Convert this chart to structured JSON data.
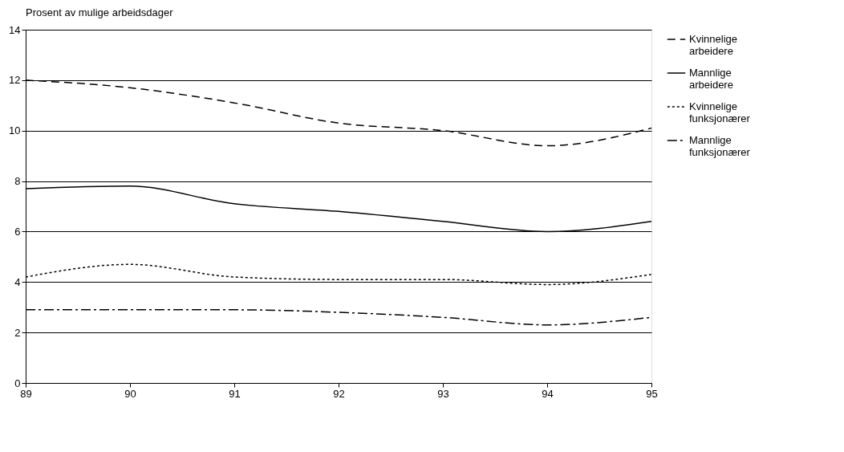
{
  "chart_data": {
    "type": "line",
    "title": "Prosent av mulige arbeidsdager",
    "x": [
      89,
      90,
      91,
      92,
      93,
      94,
      95
    ],
    "series": [
      {
        "name": "Kvinnelige arbeidere",
        "color": "#000000",
        "line_style": "dashed",
        "values": [
          12.0,
          11.7,
          11.1,
          10.3,
          10.0,
          9.4,
          10.1
        ]
      },
      {
        "name": "Mannlige arbeidere",
        "color": "#000000",
        "line_style": "solid",
        "values": [
          7.7,
          7.8,
          7.1,
          6.8,
          6.4,
          6.0,
          6.4
        ]
      },
      {
        "name": "Kvinnelige funksjonærer",
        "color": "#000000",
        "line_style": "dotted",
        "values": [
          4.2,
          4.7,
          4.2,
          4.1,
          4.1,
          3.9,
          4.3
        ]
      },
      {
        "name": "Mannlige funksjonærer",
        "color": "#000000",
        "line_style": "dashdot",
        "values": [
          2.9,
          2.9,
          2.9,
          2.8,
          2.6,
          2.3,
          2.6
        ]
      }
    ],
    "xlim": [
      89,
      95
    ],
    "xticks": [
      89,
      90,
      91,
      92,
      93,
      94,
      95
    ],
    "ylim": [
      0,
      14
    ],
    "yticks": [
      0,
      2,
      4,
      6,
      8,
      10,
      12,
      14
    ],
    "grid": "y",
    "legend": "right",
    "marker": "none"
  }
}
